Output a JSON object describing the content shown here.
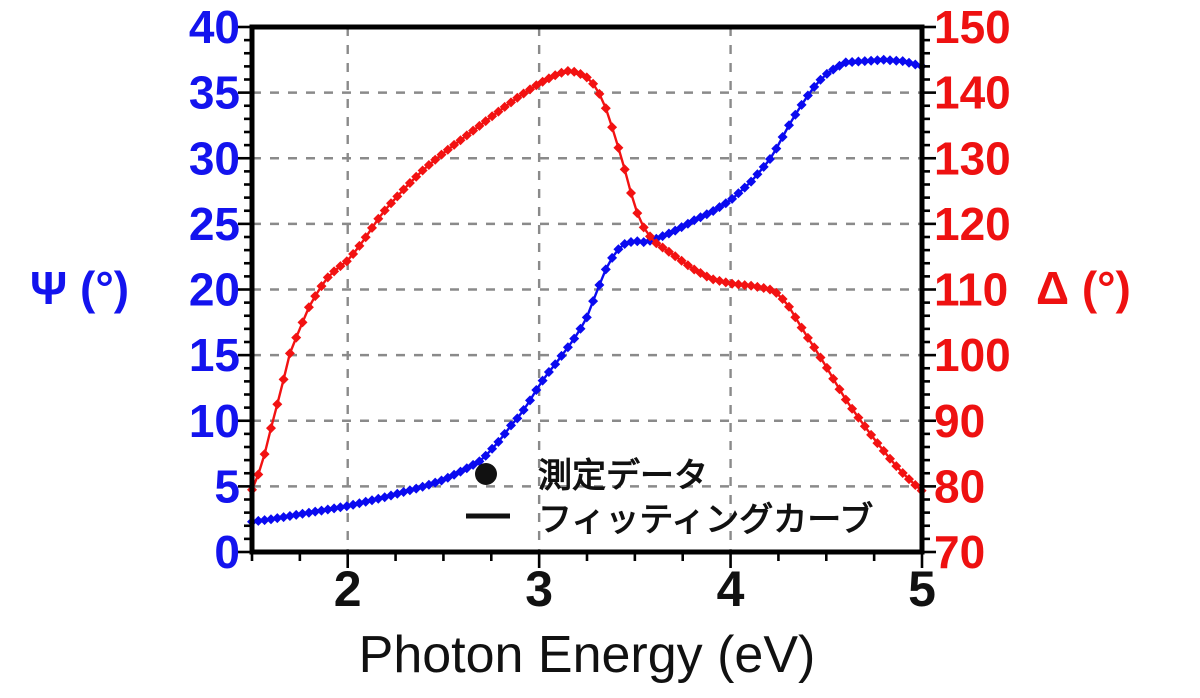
{
  "chart_data": {
    "type": "line",
    "title": "",
    "xlabel": "Photon Energy (eV)",
    "x_range": [
      1.5,
      5.0
    ],
    "x_major_ticks": [
      2,
      3,
      4,
      5
    ],
    "x_minor_step": 0.25,
    "grid": "dashed",
    "grid_color": "#8a8a8a",
    "frame_color": "#000000",
    "left_axis": {
      "label": "Ψ (°)",
      "color": "#1313ee",
      "range": [
        0,
        40
      ],
      "major_ticks": [
        40,
        35,
        30,
        25,
        20,
        15,
        10,
        5,
        0
      ],
      "minor_step": 1
    },
    "right_axis": {
      "label": "Δ (°)",
      "color": "#ee1111",
      "range": [
        70,
        150
      ],
      "major_ticks": [
        150,
        140,
        130,
        120,
        110,
        100,
        90,
        80,
        70
      ],
      "minor_step": 2
    },
    "legend": [
      {
        "marker": "dot",
        "label": "測定データ"
      },
      {
        "marker": "line",
        "label": "フィッティングカーブ"
      }
    ],
    "series": [
      {
        "name": "psi",
        "axis": "left",
        "color": "#0a0af0",
        "anchors": [
          [
            1.5,
            2.3
          ],
          [
            1.6,
            2.5
          ],
          [
            1.7,
            2.75
          ],
          [
            1.8,
            3.0
          ],
          [
            1.9,
            3.25
          ],
          [
            2.0,
            3.5
          ],
          [
            2.1,
            3.85
          ],
          [
            2.2,
            4.2
          ],
          [
            2.3,
            4.6
          ],
          [
            2.4,
            5.0
          ],
          [
            2.5,
            5.5
          ],
          [
            2.6,
            6.2
          ],
          [
            2.7,
            7.0
          ],
          [
            2.8,
            8.6
          ],
          [
            2.85,
            9.6
          ],
          [
            2.9,
            10.4
          ],
          [
            2.95,
            11.5
          ],
          [
            3.0,
            12.7
          ],
          [
            3.05,
            13.7
          ],
          [
            3.1,
            14.6
          ],
          [
            3.15,
            15.6
          ],
          [
            3.2,
            16.6
          ],
          [
            3.25,
            17.9
          ],
          [
            3.3,
            19.8
          ],
          [
            3.35,
            21.6
          ],
          [
            3.4,
            22.9
          ],
          [
            3.45,
            23.5
          ],
          [
            3.5,
            23.7
          ],
          [
            3.55,
            23.6
          ],
          [
            3.6,
            23.8
          ],
          [
            3.7,
            24.4
          ],
          [
            3.8,
            25.2
          ],
          [
            3.9,
            25.9
          ],
          [
            4.0,
            26.8
          ],
          [
            4.1,
            28.1
          ],
          [
            4.2,
            29.8
          ],
          [
            4.25,
            31.0
          ],
          [
            4.3,
            32.4
          ],
          [
            4.35,
            33.6
          ],
          [
            4.4,
            34.7
          ],
          [
            4.45,
            35.7
          ],
          [
            4.5,
            36.4
          ],
          [
            4.55,
            36.9
          ],
          [
            4.6,
            37.3
          ],
          [
            4.7,
            37.4
          ],
          [
            4.8,
            37.5
          ],
          [
            4.9,
            37.4
          ],
          [
            5.0,
            37.0
          ]
        ]
      },
      {
        "name": "delta",
        "axis": "right",
        "color": "#f21212",
        "anchors": [
          [
            1.5,
            79.5
          ],
          [
            1.55,
            83.0
          ],
          [
            1.6,
            89.0
          ],
          [
            1.65,
            94.5
          ],
          [
            1.7,
            100.5
          ],
          [
            1.75,
            104.0
          ],
          [
            1.8,
            107.5
          ],
          [
            1.85,
            110.0
          ],
          [
            1.9,
            112.0
          ],
          [
            1.95,
            113.3
          ],
          [
            2.0,
            114.4
          ],
          [
            2.05,
            116.2
          ],
          [
            2.1,
            118.2
          ],
          [
            2.15,
            120.4
          ],
          [
            2.2,
            122.3
          ],
          [
            2.3,
            125.5
          ],
          [
            2.4,
            128.4
          ],
          [
            2.5,
            130.8
          ],
          [
            2.6,
            133.0
          ],
          [
            2.7,
            135.2
          ],
          [
            2.8,
            137.4
          ],
          [
            2.9,
            139.5
          ],
          [
            3.0,
            141.4
          ],
          [
            3.1,
            142.9
          ],
          [
            3.15,
            143.3
          ],
          [
            3.2,
            143.1
          ],
          [
            3.25,
            142.3
          ],
          [
            3.3,
            140.8
          ],
          [
            3.35,
            137.5
          ],
          [
            3.4,
            133.0
          ],
          [
            3.45,
            128.0
          ],
          [
            3.5,
            122.5
          ],
          [
            3.55,
            119.2
          ],
          [
            3.6,
            117.3
          ],
          [
            3.7,
            115.3
          ],
          [
            3.8,
            113.2
          ],
          [
            3.9,
            111.6
          ],
          [
            4.0,
            110.9
          ],
          [
            4.1,
            110.6
          ],
          [
            4.2,
            110.1
          ],
          [
            4.25,
            109.3
          ],
          [
            4.3,
            107.6
          ],
          [
            4.35,
            105.2
          ],
          [
            4.4,
            102.8
          ],
          [
            4.45,
            100.6
          ],
          [
            4.5,
            98.2
          ],
          [
            4.55,
            95.7
          ],
          [
            4.6,
            93.3
          ],
          [
            4.65,
            91.2
          ],
          [
            4.7,
            89.2
          ],
          [
            4.75,
            87.2
          ],
          [
            4.8,
            85.4
          ],
          [
            4.85,
            83.6
          ],
          [
            4.9,
            82.0
          ],
          [
            4.95,
            80.6
          ],
          [
            5.0,
            79.3
          ]
        ]
      }
    ]
  }
}
